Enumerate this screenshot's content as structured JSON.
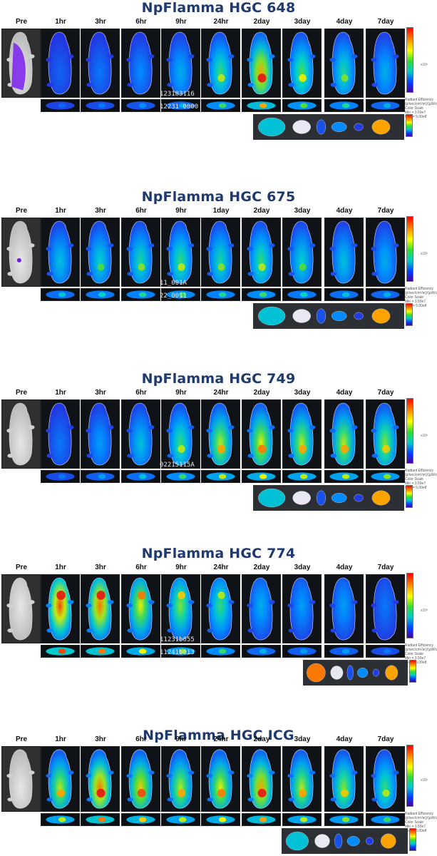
{
  "time_points": [
    "Pre",
    "1hr",
    "3hr",
    "6hr",
    "9hr",
    "24hr",
    "2day",
    "3day",
    "4day",
    "7day"
  ],
  "legend": {
    "scale_title": "Radiant Efficiency",
    "unit": "(p/sec/cm²/sr)/(µW/cm²)",
    "color_scale": "Color Scale",
    "min_label": "Min = 3.50e7",
    "max_label": "Max = 5.00e8",
    "unit_short": "x10⁸"
  },
  "panels": [
    {
      "title": "NpFlamma HGC 648",
      "labels": [
        "Pre",
        "1hr",
        "3hr",
        "6hr",
        "9hr",
        "24hr",
        "2day",
        "3day",
        "4day",
        "7day"
      ],
      "overlay_text": [
        "123183116",
        "12231 0000"
      ]
    },
    {
      "title": "NpFlamma HGC 675",
      "labels": [
        "Pre",
        "1hr",
        "3hr",
        "6hr",
        "9hr",
        "1day",
        "2day",
        "3day",
        "4day",
        "7day"
      ],
      "overlay_text": [
        "11_001A",
        "22_0011"
      ]
    },
    {
      "title": "NpFlamma HGC 749",
      "labels": [
        "Pre",
        "1hr",
        "3hr",
        "6hr",
        "9hr",
        "24hr",
        "2day",
        "3day",
        "4day",
        "7day"
      ],
      "overlay_text": [
        "02215115A"
      ]
    },
    {
      "title": "NpFlamma HGC 774",
      "labels": [
        "Pre",
        "1hr",
        "3hr",
        "6hr",
        "9hr",
        "24hr",
        "2day",
        "3day",
        "4day",
        "7day"
      ],
      "overlay_text": [
        "11231b055",
        "11241b013"
      ]
    },
    {
      "title": "NpFlamma HGC ICG",
      "labels": [
        "Pre",
        "1hr",
        "3hr",
        "6hr",
        "9hr",
        "24hr",
        "2day",
        "3day",
        "4day",
        "7day"
      ],
      "overlay_text": []
    }
  ]
}
